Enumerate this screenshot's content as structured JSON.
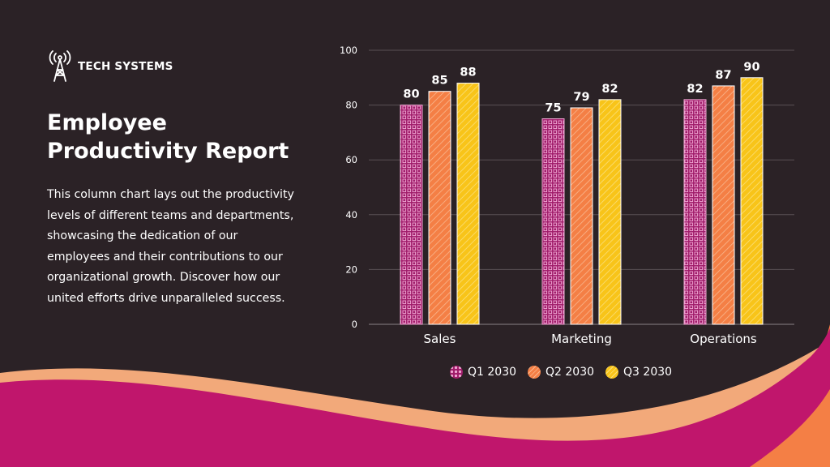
{
  "brand": {
    "name": "TECH SYSTEMS",
    "icon": "radio-tower-icon"
  },
  "title": "Employee Productivity Report",
  "description": "This column chart lays out the productivity levels of different teams and departments, showcasing the dedication of our employees and their contributions to our organizational growth. Discover how our united efforts drive unparalleled success.",
  "colors": {
    "background": "#2b2226",
    "q1": "#a01c6a",
    "q2": "#f47f45",
    "q3": "#f8c419",
    "wave_magenta": "#c0166c",
    "wave_orange": "#f47f45",
    "wave_yellow": "#f5c33b",
    "wave_peach": "#f2a97a"
  },
  "chart_data": {
    "type": "bar",
    "title": "",
    "xlabel": "",
    "ylabel": "",
    "categories": [
      "Sales",
      "Marketing",
      "Operations"
    ],
    "series": [
      {
        "name": "Q1 2030",
        "values": [
          80,
          75,
          82
        ]
      },
      {
        "name": "Q2 2030",
        "values": [
          85,
          79,
          87
        ]
      },
      {
        "name": "Q3 2030",
        "values": [
          88,
          82,
          90
        ]
      }
    ],
    "ylim": [
      0,
      100
    ],
    "yticks": [
      0,
      20,
      40,
      60,
      80,
      100
    ],
    "grid": true,
    "legend_position": "bottom"
  }
}
